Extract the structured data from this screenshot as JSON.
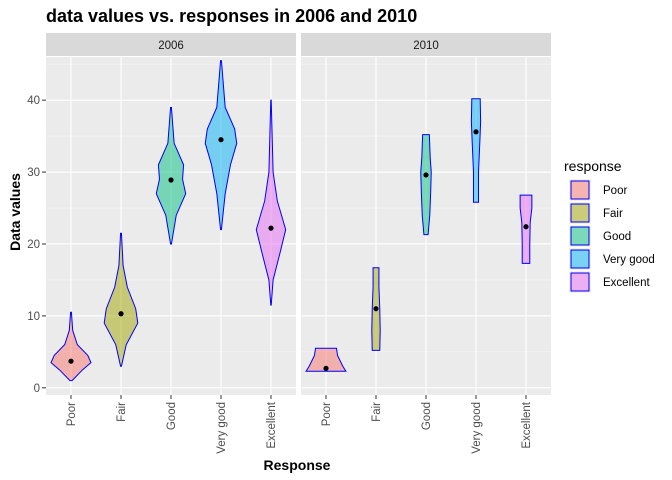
{
  "chart_data": {
    "type": "violin",
    "title": "data values vs. responses in 2006 and 2010",
    "xlabel": "Response",
    "ylabel": "Data values",
    "ylim": [
      -1,
      46
    ],
    "yticks": [
      0,
      10,
      20,
      30,
      40
    ],
    "categories": [
      "Poor",
      "Fair",
      "Good",
      "Very good",
      "Excellent"
    ],
    "legend": {
      "title": "response",
      "position": "right",
      "entries": [
        {
          "label": "Poor",
          "color": "#F8766D"
        },
        {
          "label": "Fair",
          "color": "#A3A500"
        },
        {
          "label": "Good",
          "color": "#00BF7D"
        },
        {
          "label": "Very good",
          "color": "#00B0F6"
        },
        {
          "label": "Excellent",
          "color": "#E76BF3"
        }
      ]
    },
    "fill_alpha": 0.5,
    "outline_color": "#0000FF",
    "median_color": "#000000",
    "panels": [
      {
        "label": "2006",
        "violins": [
          {
            "category": "Poor",
            "median": 3.7,
            "profile": [
              [
                1,
                0.05
              ],
              [
                2.5,
                0.55
              ],
              [
                3.5,
                0.95
              ],
              [
                4.5,
                0.8
              ],
              [
                6,
                0.3
              ],
              [
                8,
                0.08
              ],
              [
                10.5,
                0.02
              ]
            ]
          },
          {
            "category": "Fair",
            "median": 10.3,
            "profile": [
              [
                3,
                0.02
              ],
              [
                6,
                0.25
              ],
              [
                9,
                0.8
              ],
              [
                11,
                0.7
              ],
              [
                14,
                0.3
              ],
              [
                17,
                0.1
              ],
              [
                21.5,
                0.02
              ]
            ]
          },
          {
            "category": "Good",
            "median": 28.9,
            "profile": [
              [
                20,
                0.02
              ],
              [
                24,
                0.25
              ],
              [
                27,
                0.7
              ],
              [
                29,
                0.55
              ],
              [
                31,
                0.6
              ],
              [
                34,
                0.15
              ],
              [
                39,
                0.02
              ]
            ]
          },
          {
            "category": "Very good",
            "median": 34.5,
            "profile": [
              [
                22,
                0.02
              ],
              [
                27,
                0.2
              ],
              [
                31,
                0.45
              ],
              [
                34,
                0.75
              ],
              [
                36,
                0.65
              ],
              [
                39,
                0.2
              ],
              [
                45.5,
                0.02
              ]
            ]
          },
          {
            "category": "Excellent",
            "median": 22.2,
            "profile": [
              [
                11.5,
                0.01
              ],
              [
                15,
                0.1
              ],
              [
                19,
                0.45
              ],
              [
                22,
                0.7
              ],
              [
                26,
                0.3
              ],
              [
                30,
                0.1
              ],
              [
                40,
                0.01
              ]
            ]
          }
        ]
      },
      {
        "label": "2010",
        "violins": [
          {
            "category": "Poor",
            "median": 2.7,
            "profile": [
              [
                2.3,
                0.95
              ],
              [
                3,
                0.8
              ],
              [
                4.5,
                0.55
              ],
              [
                5.5,
                0.5
              ]
            ]
          },
          {
            "category": "Fair",
            "median": 11.0,
            "profile": [
              [
                5.2,
                0.18
              ],
              [
                8,
                0.2
              ],
              [
                11,
                0.18
              ],
              [
                14,
                0.14
              ],
              [
                16.7,
                0.14
              ]
            ]
          },
          {
            "category": "Good",
            "median": 29.6,
            "profile": [
              [
                21.3,
                0.1
              ],
              [
                24,
                0.18
              ],
              [
                27,
                0.22
              ],
              [
                30,
                0.25
              ],
              [
                32,
                0.2
              ],
              [
                35.2,
                0.16
              ]
            ]
          },
          {
            "category": "Very good",
            "median": 35.6,
            "profile": [
              [
                25.8,
                0.12
              ],
              [
                30,
                0.12
              ],
              [
                34,
                0.18
              ],
              [
                37,
                0.22
              ],
              [
                40.2,
                0.2
              ]
            ]
          },
          {
            "category": "Excellent",
            "median": 22.4,
            "profile": [
              [
                17.3,
                0.18
              ],
              [
                20,
                0.18
              ],
              [
                23,
                0.2
              ],
              [
                25,
                0.28
              ],
              [
                26.8,
                0.28
              ]
            ]
          }
        ]
      }
    ]
  }
}
